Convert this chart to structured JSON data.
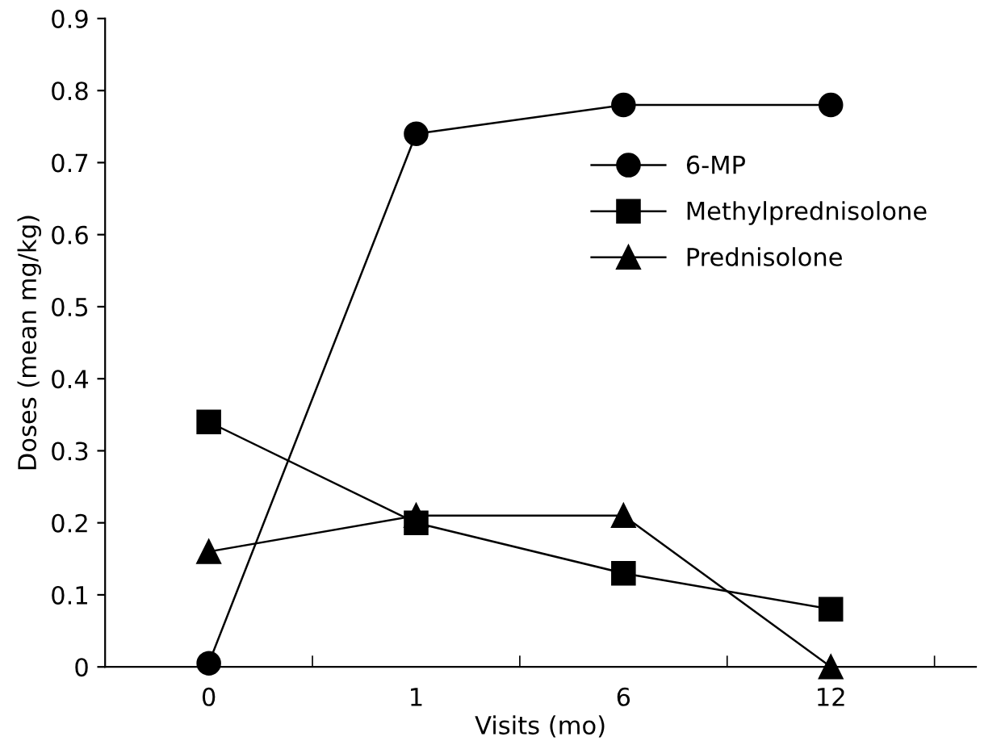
{
  "chart_data": {
    "type": "line",
    "xlabel": "Visits (mo)",
    "ylabel": "Doses (mean mg/kg)",
    "categories": [
      "0",
      "1",
      "6",
      "12"
    ],
    "series": [
      {
        "name": "6-MP",
        "color": "#000000",
        "marker": "circle",
        "values": [
          0.005,
          0.74,
          0.78,
          0.78
        ]
      },
      {
        "name": "Methylprednisolone",
        "color": "#000000",
        "marker": "square",
        "values": [
          0.34,
          0.2,
          0.13,
          0.08
        ]
      },
      {
        "name": "Prednisolone",
        "color": "#000000",
        "marker": "triangle",
        "values": [
          0.16,
          0.21,
          0.21,
          0.0
        ]
      }
    ],
    "ylim": [
      0,
      0.9
    ],
    "yticks": [
      0,
      0.1,
      0.2,
      0.3,
      0.4,
      0.5,
      0.6,
      0.7,
      0.8,
      0.9
    ],
    "grid": false,
    "legend": "right",
    "line_style": "solid"
  }
}
